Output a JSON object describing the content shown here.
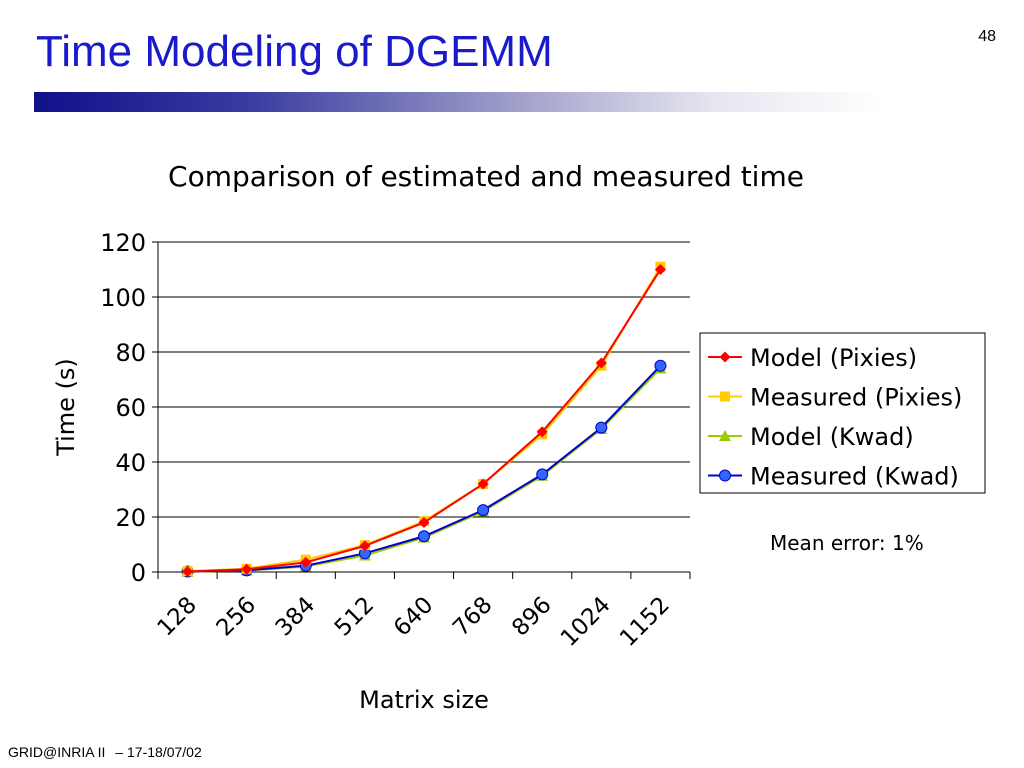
{
  "slide": {
    "title": "Time Modeling of DGEMM",
    "page_number": "48",
    "footer_left": "GRID@INRIA II",
    "footer_right": "– 17-18/07/02"
  },
  "colors": {
    "title": "#1a1acc",
    "grid": "#000000"
  },
  "chart_data": {
    "type": "line",
    "title": "Comparison of estimated and measured time",
    "xlabel": "Matrix size",
    "ylabel": "Time (s)",
    "ylim": [
      0,
      120
    ],
    "yticks": [
      0,
      20,
      40,
      60,
      80,
      100,
      120
    ],
    "xtick_labels": [
      "128",
      "256",
      "384",
      "512",
      "640",
      "768",
      "896",
      "1024",
      "1152"
    ],
    "grid": "horizontal",
    "legend_position": "right",
    "annotation": "Mean error: 1%",
    "points_per_series": 9,
    "series": [
      {
        "name": "Model (Pixies)",
        "color": "#ff0000",
        "marker": "diamond",
        "values": [
          0.2,
          1.0,
          3.5,
          9.5,
          18.0,
          32.0,
          51.0,
          76.0,
          110.0
        ]
      },
      {
        "name": "Measured (Pixies)",
        "color": "#ffcc00",
        "marker": "square",
        "values": [
          0.3,
          1.2,
          4.5,
          9.8,
          18.5,
          32.0,
          50.0,
          75.0,
          111.0
        ]
      },
      {
        "name": "Model (Kwad)",
        "color": "#99cc00",
        "marker": "triangle",
        "values": [
          0.1,
          0.5,
          2.0,
          6.0,
          12.5,
          22.0,
          35.0,
          52.0,
          74.0
        ]
      },
      {
        "name": "Measured (Kwad)",
        "color": "#0000cc",
        "marker": "circle",
        "values": [
          0.2,
          0.6,
          2.3,
          6.8,
          13.0,
          22.5,
          35.5,
          52.5,
          75.0
        ]
      }
    ]
  }
}
